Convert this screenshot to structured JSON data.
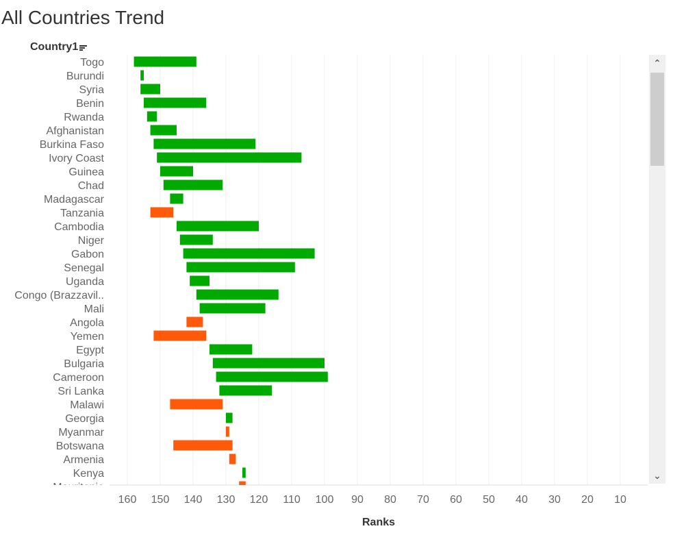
{
  "title": "All Countries Trend",
  "field_header": "Country1",
  "icons": {
    "sort": "sort-descending-icon",
    "scroll_up": "chevron-up-icon",
    "scroll_down": "chevron-down-icon"
  },
  "scrollbar": {
    "up_glyph": "⌃",
    "down_glyph": "⌄"
  },
  "colors": {
    "improved": "#00aa00",
    "declined": "#ff5a0a",
    "grid": "#ececec"
  },
  "chart_data": {
    "type": "bar",
    "orientation": "horizontal-floating",
    "title": "All Countries Trend",
    "xlabel": "Ranks",
    "ylabel": "Country1",
    "x_axis_reversed": true,
    "xlim": [
      165,
      7
    ],
    "xticks": [
      160,
      150,
      140,
      130,
      120,
      110,
      100,
      90,
      80,
      70,
      60,
      50,
      40,
      30,
      20,
      10
    ],
    "grid": true,
    "rows": [
      {
        "country": "Togo",
        "start": 158,
        "end": 139,
        "trend": "improved"
      },
      {
        "country": "Burundi",
        "start": 156,
        "end": 155,
        "trend": "improved"
      },
      {
        "country": "Syria",
        "start": 156,
        "end": 150,
        "trend": "improved"
      },
      {
        "country": "Benin",
        "start": 155,
        "end": 136,
        "trend": "improved"
      },
      {
        "country": "Rwanda",
        "start": 154,
        "end": 151,
        "trend": "improved"
      },
      {
        "country": "Afghanistan",
        "start": 153,
        "end": 145,
        "trend": "improved"
      },
      {
        "country": "Burkina Faso",
        "start": 152,
        "end": 121,
        "trend": "improved"
      },
      {
        "country": "Ivory Coast",
        "start": 151,
        "end": 107,
        "trend": "improved"
      },
      {
        "country": "Guinea",
        "start": 150,
        "end": 140,
        "trend": "improved"
      },
      {
        "country": "Chad",
        "start": 149,
        "end": 131,
        "trend": "improved"
      },
      {
        "country": "Madagascar",
        "start": 147,
        "end": 143,
        "trend": "improved"
      },
      {
        "country": "Tanzania",
        "start": 153,
        "end": 146,
        "trend": "declined"
      },
      {
        "country": "Cambodia",
        "start": 145,
        "end": 120,
        "trend": "improved"
      },
      {
        "country": "Niger",
        "start": 144,
        "end": 134,
        "trend": "improved"
      },
      {
        "country": "Gabon",
        "start": 143,
        "end": 103,
        "trend": "improved"
      },
      {
        "country": "Senegal",
        "start": 142,
        "end": 109,
        "trend": "improved"
      },
      {
        "country": "Uganda",
        "start": 141,
        "end": 135,
        "trend": "improved"
      },
      {
        "country": "Congo (Brazzavil..",
        "start": 139,
        "end": 114,
        "trend": "improved"
      },
      {
        "country": "Mali",
        "start": 138,
        "end": 118,
        "trend": "improved"
      },
      {
        "country": "Angola",
        "start": 142,
        "end": 137,
        "trend": "declined"
      },
      {
        "country": "Yemen",
        "start": 152,
        "end": 136,
        "trend": "declined"
      },
      {
        "country": "Egypt",
        "start": 135,
        "end": 122,
        "trend": "improved"
      },
      {
        "country": "Bulgaria",
        "start": 134,
        "end": 100,
        "trend": "improved"
      },
      {
        "country": "Cameroon",
        "start": 133,
        "end": 99,
        "trend": "improved"
      },
      {
        "country": "Sri Lanka",
        "start": 132,
        "end": 116,
        "trend": "improved"
      },
      {
        "country": "Malawi",
        "start": 147,
        "end": 131,
        "trend": "declined"
      },
      {
        "country": "Georgia",
        "start": 130,
        "end": 128,
        "trend": "improved"
      },
      {
        "country": "Myanmar",
        "start": 130,
        "end": 129,
        "trend": "declined"
      },
      {
        "country": "Botswana",
        "start": 146,
        "end": 128,
        "trend": "declined"
      },
      {
        "country": "Armenia",
        "start": 129,
        "end": 127,
        "trend": "declined"
      },
      {
        "country": "Kenya",
        "start": 125,
        "end": 124,
        "trend": "improved"
      },
      {
        "country": "Mauritania",
        "start": 126,
        "end": 124,
        "trend": "declined"
      }
    ]
  }
}
